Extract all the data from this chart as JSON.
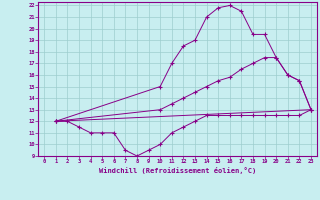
{
  "bg_color": "#c8eef0",
  "line_color": "#880088",
  "grid_color": "#aadddd",
  "xlabel": "Windchill (Refroidissement éolien,°C)",
  "xlabel_color": "#880088",
  "xlim": [
    -0.5,
    23.5
  ],
  "ylim": [
    9,
    22.3
  ],
  "yticks": [
    9,
    10,
    11,
    12,
    13,
    14,
    15,
    16,
    17,
    18,
    19,
    20,
    21,
    22
  ],
  "xticks": [
    0,
    1,
    2,
    3,
    4,
    5,
    6,
    7,
    8,
    9,
    10,
    11,
    12,
    13,
    14,
    15,
    16,
    17,
    18,
    19,
    20,
    21,
    22,
    23
  ],
  "line1_x": [
    1,
    10,
    11,
    12,
    13,
    14,
    15,
    16,
    17,
    18,
    19,
    20,
    21,
    22,
    23
  ],
  "line1_y": [
    12,
    15,
    17,
    18.5,
    19,
    21,
    21.8,
    22,
    21.5,
    19.5,
    19.5,
    17.5,
    16,
    15.5,
    13
  ],
  "line2_x": [
    1,
    10,
    11,
    12,
    13,
    14,
    15,
    16,
    17,
    18,
    19,
    20,
    21,
    22,
    23
  ],
  "line2_y": [
    12,
    13,
    13.5,
    14,
    14.5,
    15,
    15.5,
    15.8,
    16.5,
    17,
    17.5,
    17.5,
    16,
    15.5,
    13
  ],
  "line3_x": [
    1,
    2,
    3,
    4,
    5,
    6,
    7,
    8,
    9,
    10,
    11,
    12,
    13,
    14,
    15,
    16,
    17,
    18,
    19,
    20,
    21,
    22,
    23
  ],
  "line3_y": [
    12,
    12,
    11.5,
    11,
    11,
    11,
    9.5,
    9,
    9.5,
    10,
    11,
    11.5,
    12,
    12.5,
    12.5,
    12.5,
    12.5,
    12.5,
    12.5,
    12.5,
    12.5,
    12.5,
    13
  ],
  "line4_x": [
    1,
    23
  ],
  "line4_y": [
    12,
    13
  ],
  "tick_fontsize": 4,
  "xlabel_fontsize": 5
}
